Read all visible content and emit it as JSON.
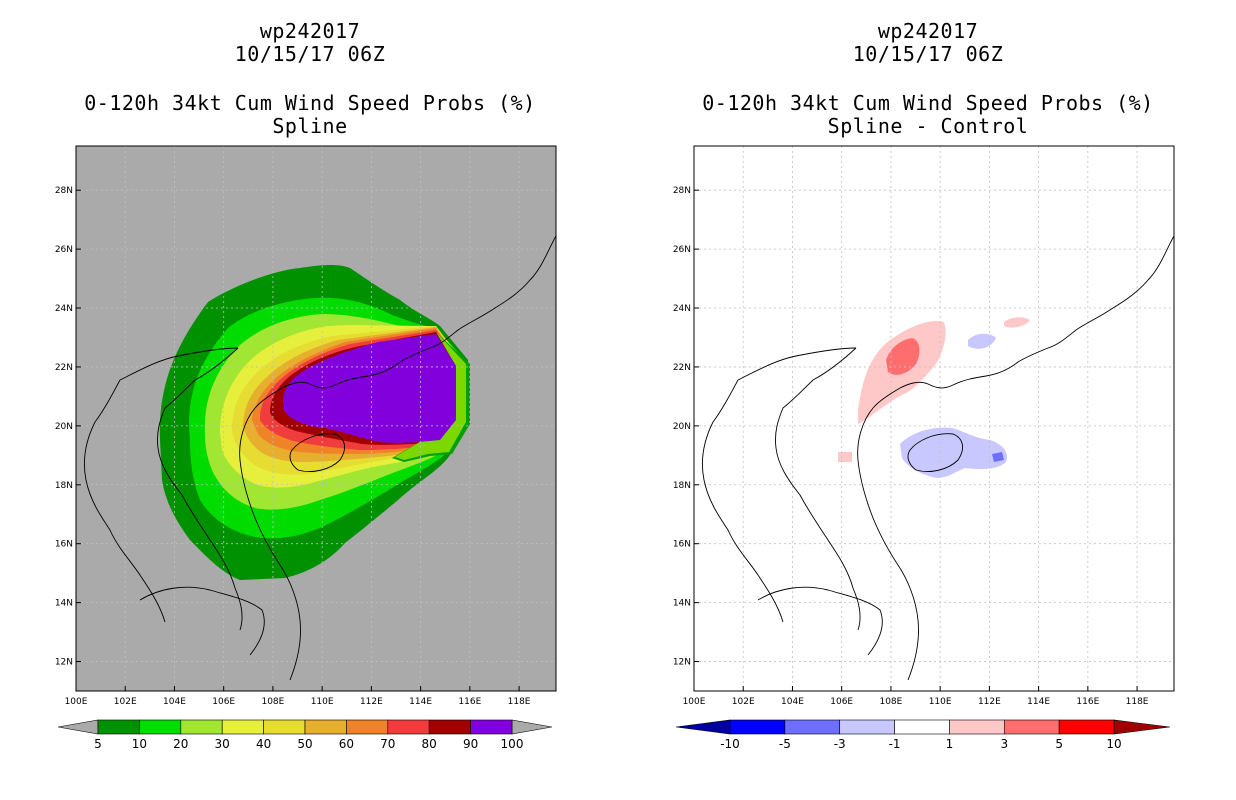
{
  "chart_data": [
    {
      "type": "contour-map",
      "id": "left",
      "title_lines": [
        "wp242017",
        "10/15/17 06Z"
      ],
      "subtitle_lines": [
        "0-120h 34kt Cum Wind Speed Probs (%)",
        "Spline"
      ],
      "lon_range": [
        100,
        119.5
      ],
      "lat_range": [
        11,
        29.5
      ],
      "x_ticks": [
        "100E",
        "102E",
        "104E",
        "106E",
        "108E",
        "110E",
        "112E",
        "114E",
        "116E",
        "118E"
      ],
      "y_ticks": [
        "12N",
        "14N",
        "16N",
        "18N",
        "20N",
        "22N",
        "24N",
        "26N",
        "28N"
      ],
      "colorbar": {
        "labels": [
          "5",
          "10",
          "20",
          "30",
          "40",
          "50",
          "60",
          "70",
          "80",
          "90",
          "100"
        ],
        "colors": [
          "#009100",
          "#00dc00",
          "#a0e632",
          "#e6f03c",
          "#e6dc32",
          "#e6af2d",
          "#f08228",
          "#f03c3c",
          "#a00000",
          "#8200dc"
        ]
      }
    },
    {
      "type": "contour-map",
      "id": "right",
      "title_lines": [
        "wp242017",
        "10/15/17 06Z"
      ],
      "subtitle_lines": [
        "0-120h 34kt Cum Wind Speed Probs (%)",
        "Spline - Control"
      ],
      "lon_range": [
        100,
        119.5
      ],
      "lat_range": [
        11,
        29.5
      ],
      "x_ticks": [
        "100E",
        "102E",
        "104E",
        "106E",
        "108E",
        "110E",
        "112E",
        "114E",
        "116E",
        "118E"
      ],
      "y_ticks": [
        "12N",
        "14N",
        "16N",
        "18N",
        "20N",
        "22N",
        "24N",
        "26N",
        "28N"
      ],
      "colorbar": {
        "labels": [
          "-10",
          "-5",
          "-3",
          "-1",
          "1",
          "3",
          "5",
          "10"
        ],
        "colors": [
          "#0000a0",
          "#0000ff",
          "#6e6eff",
          "#c8c8ff",
          "#ffffff",
          "#ffc8c8",
          "#ff6e6e",
          "#ff0000",
          "#a00000"
        ]
      }
    }
  ],
  "colors": {
    "land_gray": "#aaaaaa",
    "grid": "#c0c0c0"
  }
}
